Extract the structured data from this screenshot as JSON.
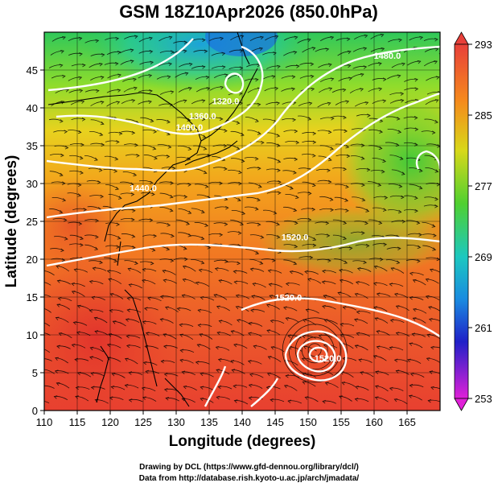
{
  "title": "GSM 18Z10Apr2026 (850.0hPa)",
  "credits": {
    "line1": "Drawing by DCL (https://www.gfd-dennou.org/library/dcl/)",
    "line2": "Data from http://database.rish.kyoto-u.ac.jp/arch/jmadata/"
  },
  "chart_data": {
    "type": "heatmap",
    "xlabel": "Longitude (degrees)",
    "ylabel": "Latitude  (degrees)",
    "xlim": [
      110,
      170
    ],
    "ylim": [
      0,
      50
    ],
    "x_ticks": [
      110,
      115,
      120,
      125,
      130,
      135,
      140,
      145,
      150,
      155,
      160,
      165
    ],
    "y_ticks": [
      0,
      5,
      10,
      15,
      20,
      25,
      30,
      35,
      40,
      45
    ],
    "colorbar": {
      "min": 253,
      "max": 293,
      "tick_labels": [
        253,
        261,
        269,
        277,
        285,
        293
      ]
    },
    "contour_labels": [
      {
        "text": "1320.0",
        "lon": 137.5,
        "lat": 40.5
      },
      {
        "text": "1360.0",
        "lon": 134.0,
        "lat": 38.5
      },
      {
        "text": "1400.0",
        "lon": 132.0,
        "lat": 37.0
      },
      {
        "text": "1440.0",
        "lon": 125.0,
        "lat": 29.0
      },
      {
        "text": "1480.0",
        "lon": 162.0,
        "lat": 46.5
      },
      {
        "text": "1520.0",
        "lon": 148.0,
        "lat": 22.5
      },
      {
        "text": "1520.0",
        "lon": 147.0,
        "lat": 14.5
      },
      {
        "text": "1520.0",
        "lon": 153.0,
        "lat": 6.5
      }
    ],
    "annotations": [
      "grid on",
      "streamlines",
      "white height contours"
    ]
  }
}
